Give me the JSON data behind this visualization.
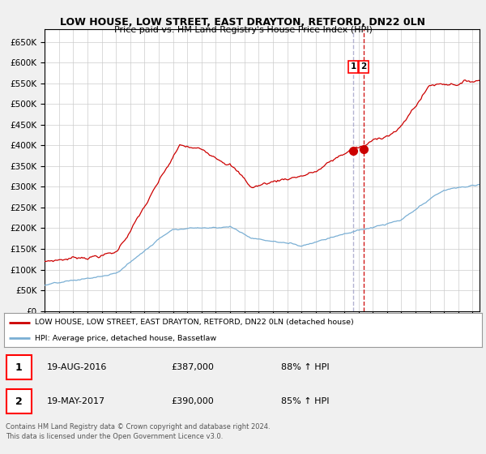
{
  "title": "LOW HOUSE, LOW STREET, EAST DRAYTON, RETFORD, DN22 0LN",
  "subtitle": "Price paid vs. HM Land Registry's House Price Index (HPI)",
  "ylim": [
    0,
    680000
  ],
  "yticks": [
    0,
    50000,
    100000,
    150000,
    200000,
    250000,
    300000,
    350000,
    400000,
    450000,
    500000,
    550000,
    600000,
    650000
  ],
  "xlim_start": 1995.0,
  "xlim_end": 2025.5,
  "sale1_date": "19-AUG-2016",
  "sale1_price": 387000,
  "sale1_hpi": "88% ↑ HPI",
  "sale1_x": 2016.63,
  "sale2_date": "19-MAY-2017",
  "sale2_price": 390000,
  "sale2_hpi": "85% ↑ HPI",
  "sale2_x": 2017.38,
  "red_line_color": "#cc0000",
  "blue_line_color": "#7aafd4",
  "vline1_color": "#aaaacc",
  "vline2_color": "#cc0000",
  "legend_label1": "LOW HOUSE, LOW STREET, EAST DRAYTON, RETFORD, DN22 0LN (detached house)",
  "legend_label2": "HPI: Average price, detached house, Bassetlaw",
  "copyright": "Contains HM Land Registry data © Crown copyright and database right 2024.\nThis data is licensed under the Open Government Licence v3.0.",
  "background_color": "#f0f0f0",
  "plot_bg_color": "#ffffff"
}
